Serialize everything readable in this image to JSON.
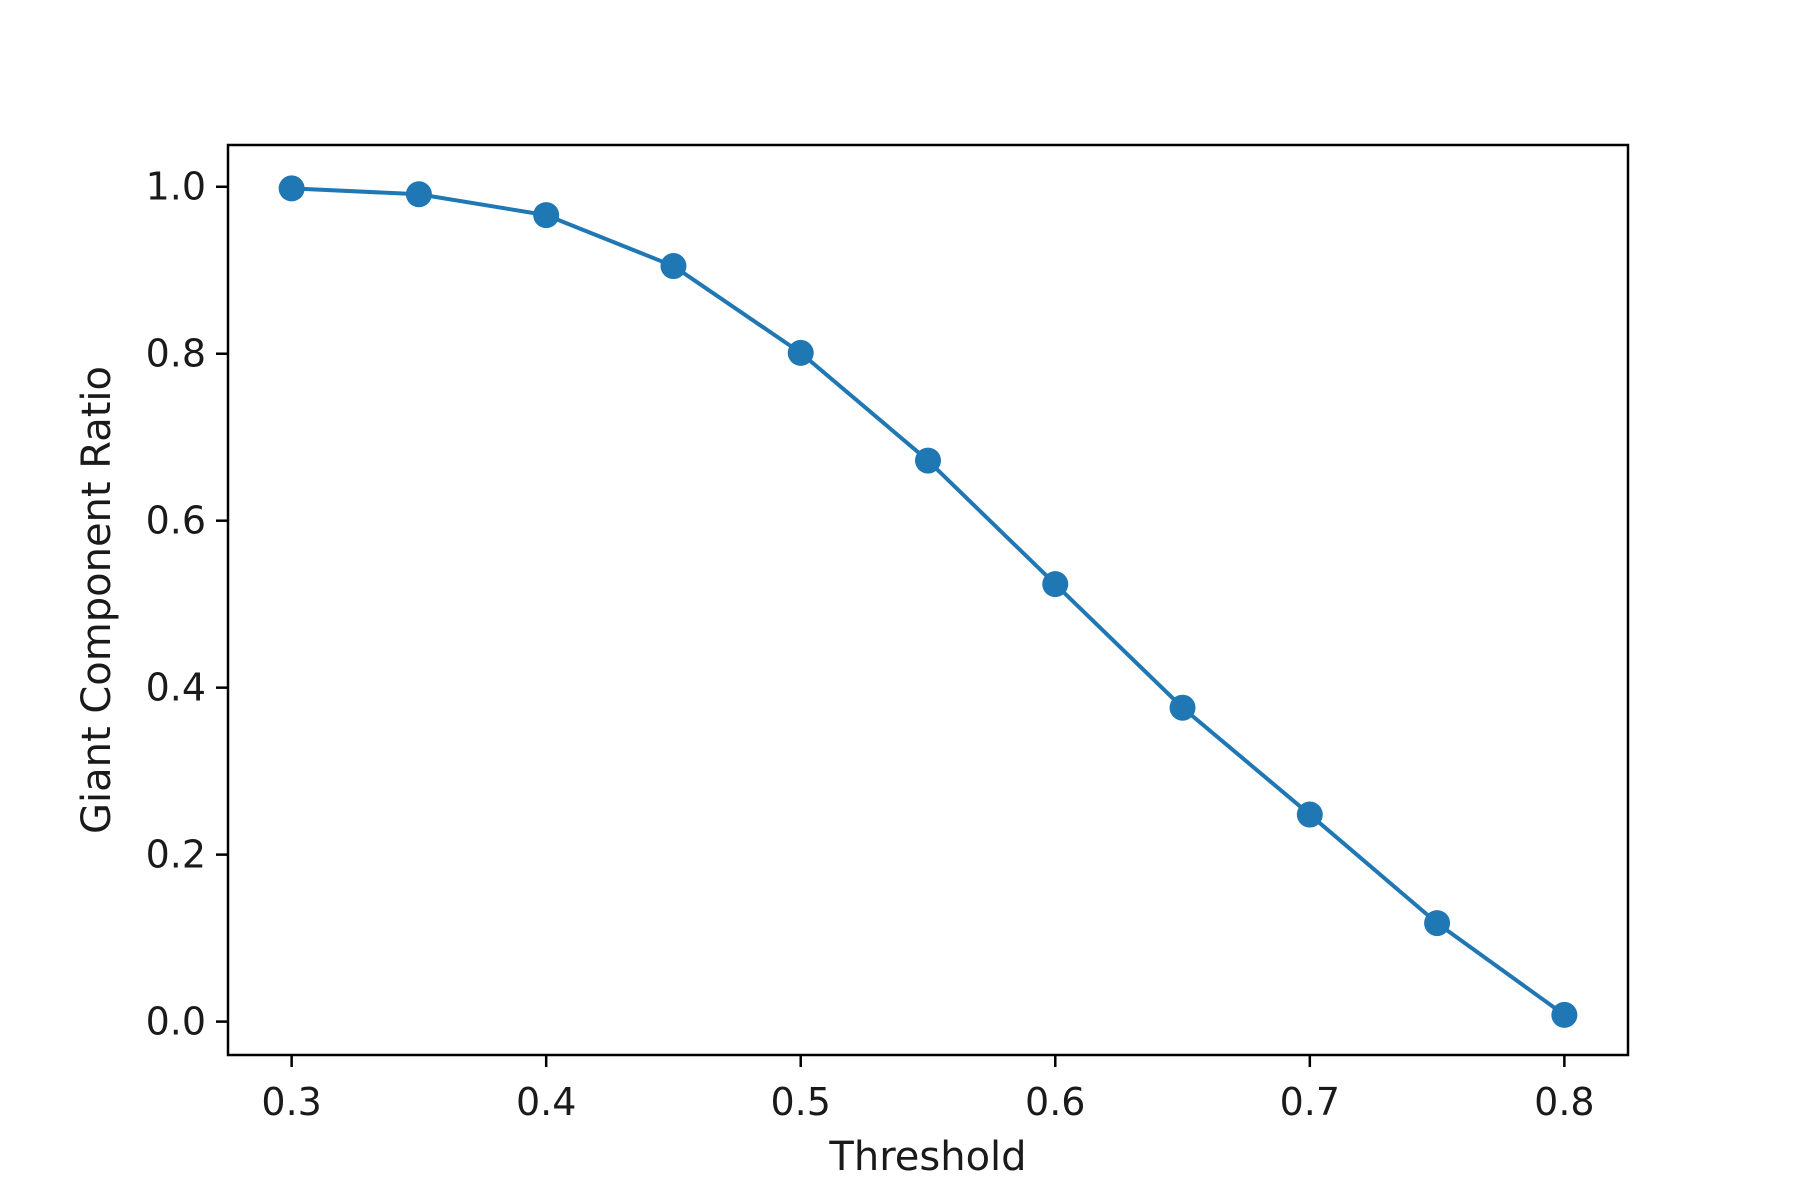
{
  "chart_data": {
    "type": "line",
    "title": "",
    "xlabel": "Threshold",
    "ylabel": "Giant Component Ratio",
    "x": [
      0.3,
      0.35,
      0.4,
      0.45,
      0.5,
      0.55,
      0.6,
      0.65,
      0.7,
      0.75,
      0.8
    ],
    "series": [
      {
        "values": [
          0.998,
          0.991,
          0.966,
          0.905,
          0.801,
          0.672,
          0.524,
          0.376,
          0.248,
          0.118,
          0.008
        ],
        "color": "#1f77b4",
        "marker": "circle"
      }
    ],
    "xlim": [
      0.275,
      0.825
    ],
    "ylim": [
      -0.04,
      1.05
    ],
    "xticks": [
      0.3,
      0.4,
      0.5,
      0.6,
      0.7,
      0.8
    ],
    "xtick_labels": [
      "0.3",
      "0.4",
      "0.5",
      "0.6",
      "0.7",
      "0.8"
    ],
    "yticks": [
      0.0,
      0.2,
      0.4,
      0.6,
      0.8,
      1.0
    ],
    "ytick_labels": [
      "0.0",
      "0.2",
      "0.4",
      "0.6",
      "0.8",
      "1.0"
    ],
    "grid": false,
    "legend": "none"
  }
}
